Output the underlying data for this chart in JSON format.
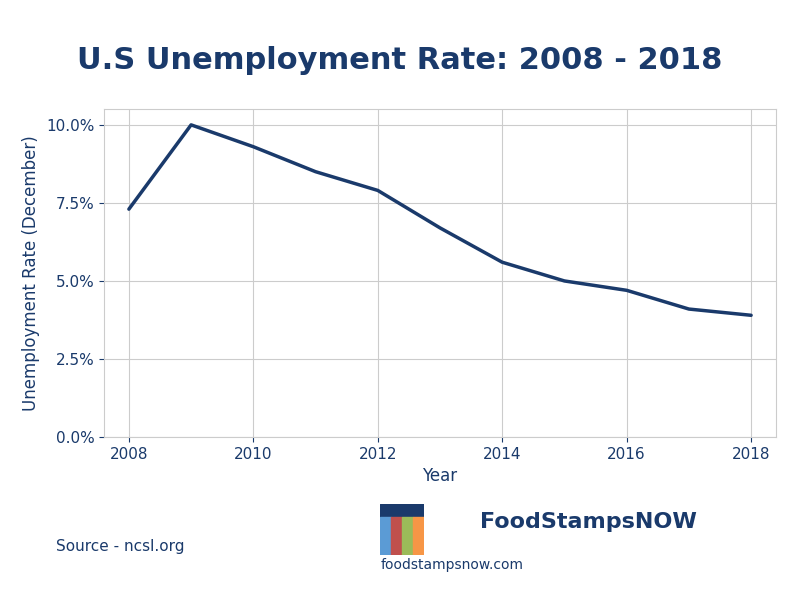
{
  "title": "U.S Unemployment Rate: 2008 - 2018",
  "xlabel": "Year",
  "ylabel": "Unemployment Rate (December)",
  "years": [
    2008,
    2009,
    2010,
    2011,
    2012,
    2013,
    2014,
    2015,
    2016,
    2017,
    2018
  ],
  "rates": [
    7.3,
    10.0,
    9.3,
    8.5,
    7.9,
    6.7,
    5.6,
    5.0,
    4.7,
    4.1,
    3.9
  ],
  "line_color": "#1a3a6b",
  "line_width": 2.5,
  "title_color": "#1a3a6b",
  "title_fontsize": 22,
  "axis_label_color": "#1a3a6b",
  "axis_label_fontsize": 12,
  "tick_color": "#1a3a6b",
  "tick_fontsize": 11,
  "ylim": [
    0.0,
    10.5
  ],
  "yticks": [
    0.0,
    2.5,
    5.0,
    7.5,
    10.0
  ],
  "xticks": [
    2008,
    2010,
    2012,
    2014,
    2016,
    2018
  ],
  "background_color": "#ffffff",
  "grid_color": "#cccccc",
  "source_text": "Source - ncsl.org",
  "source_color": "#1a3a6b",
  "source_fontsize": 11,
  "watermark_text": "FoodStampsNOW",
  "watermark_sub": "foodstampsnow.com",
  "watermark_color": "#1a3a6b",
  "watermark_fontsize": 16,
  "watermark_sub_fontsize": 10
}
